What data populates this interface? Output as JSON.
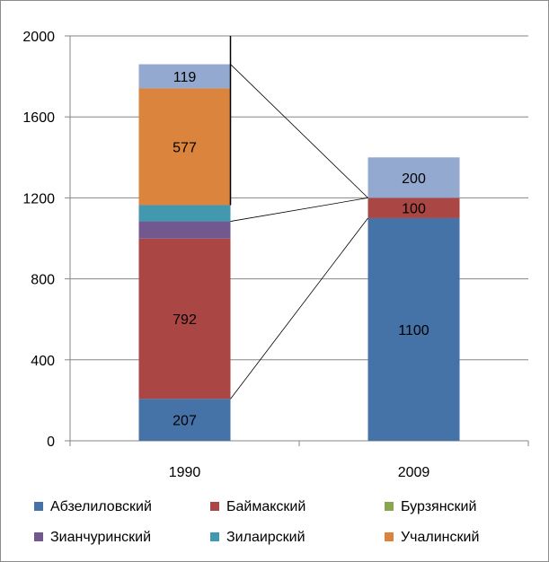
{
  "chart_data": {
    "type": "bar",
    "stacked": true,
    "categories": [
      "1990",
      "2009"
    ],
    "ylim": [
      0,
      2000
    ],
    "yticks": [
      0,
      400,
      800,
      1200,
      1600,
      2000
    ],
    "grid": true,
    "legend_position": "bottom",
    "series": [
      {
        "name": "Абзелиловский",
        "color": "#4572a7",
        "values": [
          207,
          1100
        ],
        "labels": [
          "207",
          "1100"
        ]
      },
      {
        "name": "Баймакский",
        "color": "#aa4643",
        "values": [
          792,
          100
        ],
        "labels": [
          "792",
          "100"
        ]
      },
      {
        "name": "Бурзянский",
        "color": "#89a54e",
        "values": [
          0,
          0
        ],
        "labels": [
          "",
          ""
        ]
      },
      {
        "name": "Зианчуринский",
        "color": "#71588f",
        "values": [
          85,
          0
        ],
        "labels": [
          "",
          ""
        ]
      },
      {
        "name": "Зилаирский",
        "color": "#4198af",
        "values": [
          80,
          0
        ],
        "labels": [
          "",
          ""
        ]
      },
      {
        "name": "Учалинский",
        "color": "#db843d",
        "values": [
          577,
          0
        ],
        "labels": [
          "577",
          ""
        ]
      },
      {
        "name": "",
        "color": "#93a9cf",
        "values": [
          119,
          200
        ],
        "labels": [
          "119",
          "200"
        ]
      }
    ]
  }
}
